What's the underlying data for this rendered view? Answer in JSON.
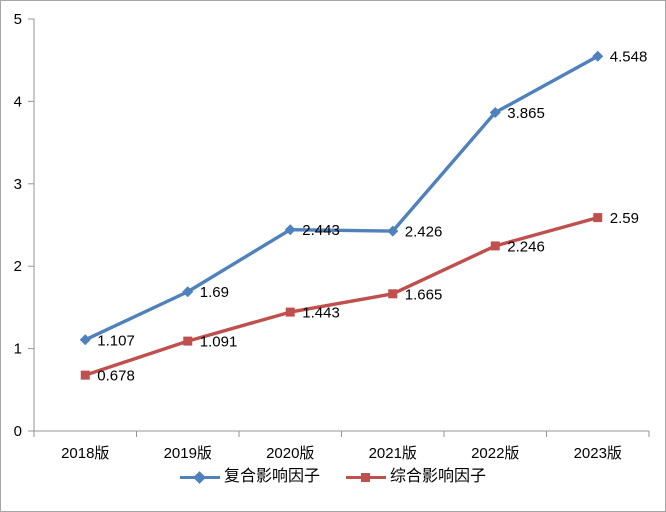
{
  "chart_data": {
    "type": "line",
    "title": "",
    "xlabel": "",
    "ylabel": "",
    "categories": [
      "2018版",
      "2019版",
      "2020版",
      "2021版",
      "2022版",
      "2023版"
    ],
    "series": [
      {
        "name": "复合影响因子",
        "marker": "diamond",
        "color": "#4F81BD",
        "values": [
          1.107,
          1.69,
          2.443,
          2.426,
          3.865,
          4.548
        ],
        "labels": [
          "1.107",
          "1.69",
          "2.443",
          "2.426",
          "3.865",
          "4.548"
        ]
      },
      {
        "name": "综合影响因子",
        "marker": "square",
        "color": "#C0504D",
        "values": [
          0.678,
          1.091,
          1.443,
          1.665,
          2.246,
          2.59
        ],
        "labels": [
          "0.678",
          "1.091",
          "1.443",
          "1.665",
          "2.246",
          "2.59"
        ]
      }
    ],
    "ylim": [
      0,
      5
    ],
    "y_ticks": [
      0,
      1,
      2,
      3,
      4,
      5
    ],
    "grid": false,
    "legend_position": "bottom",
    "axis_color": "#969696",
    "text_color": "#000000"
  }
}
